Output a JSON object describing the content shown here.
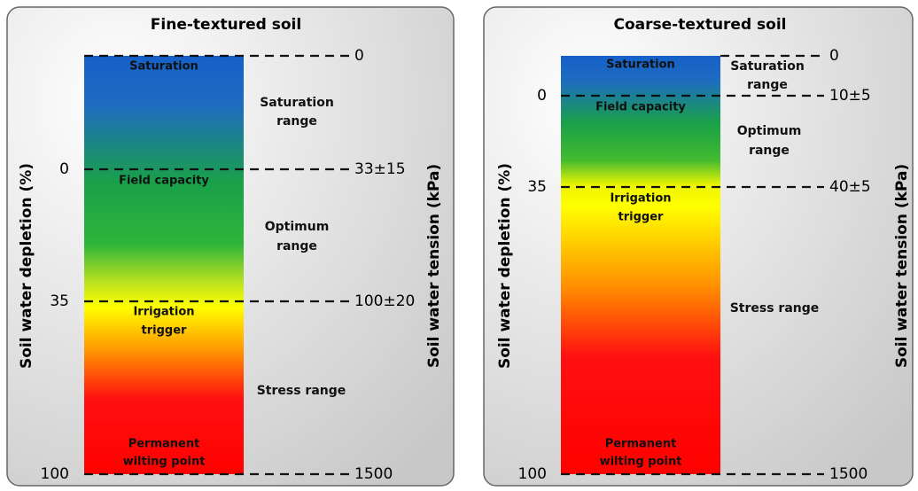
{
  "panels": [
    {
      "title": "Fine-textured soil",
      "left_axis_label": "Soil water depletion (%)",
      "right_axis_label": "Soil water tension (kPa)",
      "left_ticks": [
        "0",
        "35",
        "100"
      ],
      "right_ticks": [
        "0",
        "33±15",
        "100±20",
        "1500"
      ],
      "zone_labels": [
        [
          "Saturation"
        ],
        [
          "Field capacity"
        ],
        [
          "Irrigation",
          "trigger"
        ],
        [
          "Permanent",
          "wilting point"
        ]
      ],
      "range_labels": [
        [
          "Saturation",
          "range"
        ],
        [
          "Optimum",
          "range"
        ],
        [
          "Stress range"
        ]
      ]
    },
    {
      "title": "Coarse-textured soil",
      "left_axis_label": "Soil water depletion (%)",
      "right_axis_label": "Soil water tension (kPa)",
      "left_ticks": [
        "0",
        "35",
        "100"
      ],
      "right_ticks": [
        "0",
        "10±5",
        "40±5",
        "1500"
      ],
      "zone_labels": [
        [
          "Saturation"
        ],
        [
          "Field capacity"
        ],
        [
          "Irrigation",
          "trigger"
        ],
        [
          "Permanent",
          "wilting point"
        ]
      ],
      "range_labels": [
        [
          "Saturation",
          "range"
        ],
        [
          "Optimum",
          "range"
        ],
        [
          "Stress range"
        ]
      ]
    }
  ]
}
